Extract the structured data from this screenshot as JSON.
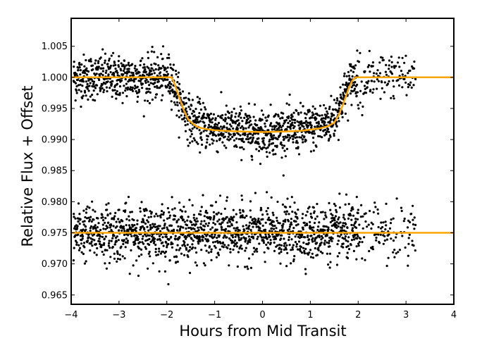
{
  "chart_data": {
    "type": "scatter",
    "title": "",
    "xlabel": "Hours from Mid Transit",
    "ylabel": "Relative Flux + Offset",
    "xlim": [
      -4,
      4
    ],
    "ylim": [
      0.9635,
      1.0095
    ],
    "grid": false,
    "legend": "none",
    "x_ticks": [
      -4,
      -3,
      -2,
      -1,
      0,
      1,
      2,
      3,
      4
    ],
    "x_tick_labels": [
      "−4",
      "−3",
      "−2",
      "−1",
      "0",
      "1",
      "2",
      "3",
      "4"
    ],
    "y_ticks": [
      0.965,
      0.97,
      0.975,
      0.98,
      0.985,
      0.99,
      0.995,
      1.0,
      1.005
    ],
    "y_tick_labels": [
      "0.965",
      "0.970",
      "0.975",
      "0.980",
      "0.985",
      "0.990",
      "0.995",
      "1.000",
      "1.005"
    ],
    "series": [
      {
        "kind": "points",
        "color": "#000000",
        "data_x_range": [
          -3.95,
          3.2
        ],
        "trend": [
          [
            -4.0,
            1.0
          ],
          [
            -1.9,
            1.0
          ],
          [
            -1.75,
            0.9965
          ],
          [
            -1.5,
            0.993
          ],
          [
            -1.3,
            0.9925
          ],
          [
            -1.0,
            0.9918
          ],
          [
            -0.5,
            0.9915
          ],
          [
            0.0,
            0.9912
          ],
          [
            0.5,
            0.9915
          ],
          [
            1.0,
            0.9918
          ],
          [
            1.3,
            0.9925
          ],
          [
            1.5,
            0.9935
          ],
          [
            1.7,
            0.997
          ],
          [
            1.9,
            1.0
          ],
          [
            3.2,
            1.0
          ]
        ],
        "scatter_sigma": 0.0018
      },
      {
        "kind": "points",
        "color": "#000000",
        "data_x_range": [
          -3.95,
          3.2
        ],
        "trend": [
          [
            -4.0,
            0.975
          ],
          [
            3.2,
            0.975
          ]
        ],
        "scatter_sigma": 0.0022
      },
      {
        "kind": "model",
        "color": "#FFA500",
        "x": [
          -4.0,
          -1.9,
          -1.85,
          -1.75,
          -1.65,
          -1.55,
          -1.45,
          -1.35,
          -1.2,
          -1.0,
          -0.8,
          -0.5,
          -0.2,
          0.0,
          0.2,
          0.5,
          0.8,
          1.0,
          1.2,
          1.35,
          1.5,
          1.6,
          1.7,
          1.8,
          1.88,
          1.95,
          4.0
        ],
        "y": [
          1.0,
          1.0,
          0.9992,
          0.997,
          0.9948,
          0.9932,
          0.9925,
          0.992,
          0.9917,
          0.9915,
          0.9914,
          0.9913,
          0.99125,
          0.9912,
          0.99125,
          0.9913,
          0.9914,
          0.9916,
          0.9918,
          0.9921,
          0.9927,
          0.994,
          0.996,
          0.9982,
          0.9995,
          1.0,
          1.0
        ]
      },
      {
        "kind": "model",
        "color": "#FFA500",
        "x": [
          -4.0,
          4.0
        ],
        "y": [
          0.975,
          0.975
        ]
      }
    ]
  }
}
